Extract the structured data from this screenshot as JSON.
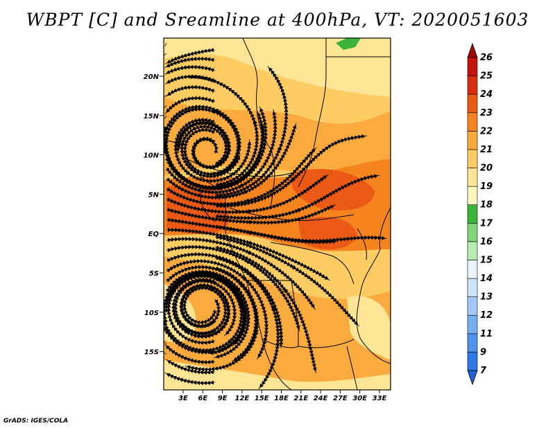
{
  "title": "WBPT [C] and Sreamline at 400hPa, VT: 2020051603",
  "credit": "GrADS: IGES/COLA",
  "map": {
    "lat_ticks": [
      "20N",
      "15N",
      "10N",
      "5N",
      "EQ",
      "5S",
      "10S",
      "15S"
    ],
    "lon_ticks": [
      "3E",
      "6E",
      "9E",
      "12E",
      "15E",
      "18E",
      "21E",
      "24E",
      "27E",
      "30E",
      "33E"
    ]
  },
  "colorbar": {
    "levels": [
      "7",
      "9",
      "11",
      "12",
      "13",
      "14",
      "15",
      "16",
      "17",
      "18",
      "19",
      "20",
      "21",
      "22",
      "23",
      "24",
      "25",
      "26"
    ],
    "colors": [
      "#1f62d8",
      "#2e7ae6",
      "#4e93ee",
      "#78aef4",
      "#a2c9f8",
      "#cde2fb",
      "#eaf5fb",
      "#b8ecb0",
      "#7fd67a",
      "#3cb43c",
      "#fdf6c0",
      "#fde595",
      "#fdcc62",
      "#fbaa3e",
      "#f5841e",
      "#ea5a14",
      "#d82e0e",
      "#c4120c",
      "#a30808"
    ]
  }
}
